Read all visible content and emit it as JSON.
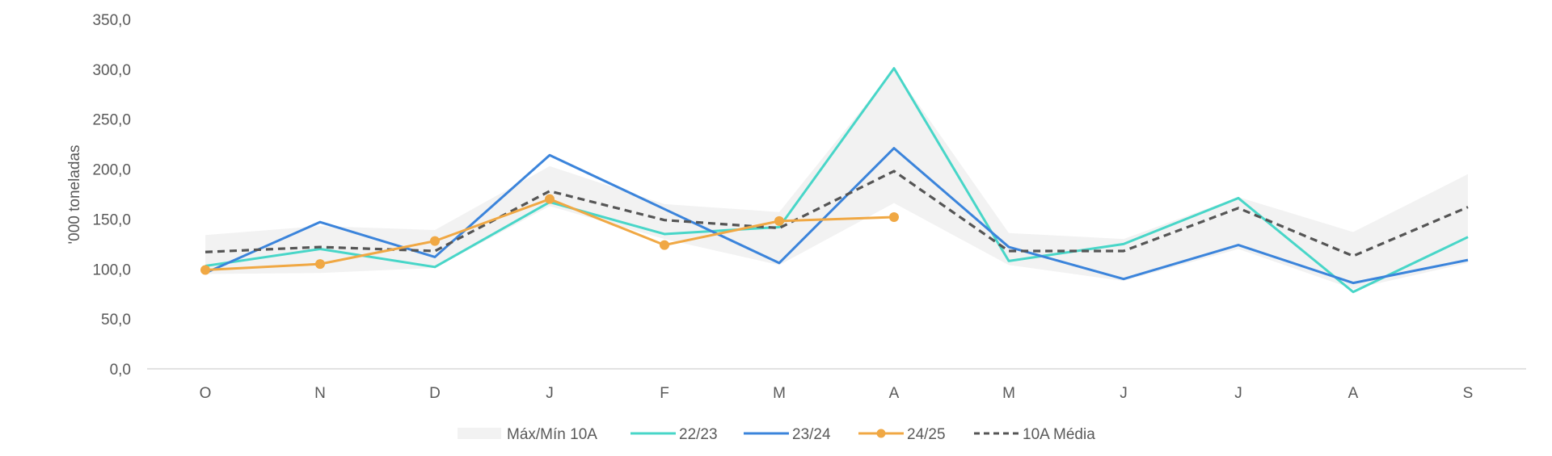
{
  "chart_data": {
    "type": "line",
    "title": "",
    "xlabel": "",
    "ylabel": "'000 toneladas",
    "ylim": [
      0,
      350
    ],
    "yticks": [
      "0,0",
      "50,0",
      "100,0",
      "150,0",
      "200,0",
      "250,0",
      "300,0",
      "350,0"
    ],
    "categories": [
      "O",
      "N",
      "D",
      "J",
      "F",
      "M",
      "A",
      "M",
      "J",
      "J",
      "A",
      "S"
    ],
    "band": {
      "name": "Máx/Mín 10A",
      "color": "#f2f2f2",
      "max": [
        134,
        143,
        139,
        203,
        165,
        157,
        300,
        136,
        130,
        172,
        137,
        195
      ],
      "min": [
        95,
        96,
        101,
        163,
        130,
        104,
        166,
        104,
        88,
        120,
        80,
        106
      ]
    },
    "series": [
      {
        "name": "22/23",
        "color": "#48d6c8",
        "dash": false,
        "markers": false,
        "values": [
          103,
          120,
          102,
          167,
          135,
          142,
          301,
          108,
          125,
          171,
          77,
          132
        ]
      },
      {
        "name": "23/24",
        "color": "#3b84db",
        "dash": false,
        "markers": false,
        "values": [
          96,
          147,
          112,
          214,
          160,
          106,
          221,
          122,
          90,
          124,
          86,
          109
        ]
      },
      {
        "name": "24/25",
        "color": "#f0a844",
        "dash": false,
        "markers": true,
        "values": [
          99,
          105,
          128,
          170,
          124,
          148,
          152,
          null,
          null,
          null,
          null,
          null
        ]
      },
      {
        "name": "10A Média",
        "color": "#555555",
        "dash": true,
        "markers": false,
        "values": [
          117,
          122,
          118,
          178,
          149,
          141,
          198,
          118,
          118,
          161,
          113,
          162
        ]
      }
    ],
    "grid": false,
    "legend": "bottom-center"
  }
}
